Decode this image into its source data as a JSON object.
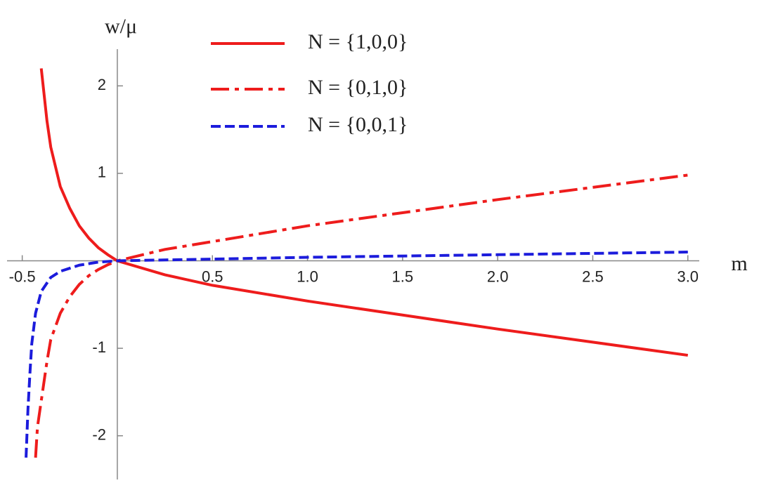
{
  "chart_data": {
    "type": "line",
    "y_label": "w/μ",
    "x_label": "m",
    "xlim": [
      -0.58,
      3.06
    ],
    "ylim": [
      -2.5,
      2.42
    ],
    "xticks": [
      -0.5,
      0.5,
      {
        "value": 1,
        "label": "1.0"
      },
      1.5,
      {
        "value": 2,
        "label": "2.0"
      },
      2.5,
      {
        "value": 3,
        "label": "3.0"
      }
    ],
    "yticks": [
      -2,
      -1,
      1,
      2
    ],
    "legend": "top",
    "series": [
      {
        "name": "N = {1,0,0}",
        "color": "#ee1c1c",
        "dash": "solid",
        "x": [
          -0.4,
          -0.37,
          -0.35,
          -0.3,
          -0.25,
          -0.2,
          -0.15,
          -0.1,
          -0.05,
          0,
          0.25,
          0.5,
          1,
          1.5,
          2,
          2.5,
          3
        ],
        "values": [
          2.2,
          1.6,
          1.3,
          0.85,
          0.6,
          0.4,
          0.26,
          0.15,
          0.07,
          0,
          -0.16,
          -0.28,
          -0.46,
          -0.62,
          -0.78,
          -0.93,
          -1.08
        ]
      },
      {
        "name": "N = {0,1,0}",
        "color": "#ee1c1c",
        "dash": "dashdot",
        "x": [
          -0.43,
          -0.42,
          -0.4,
          -0.37,
          -0.35,
          -0.3,
          -0.25,
          -0.2,
          -0.15,
          -0.1,
          -0.05,
          0,
          0.25,
          0.5,
          1,
          1.5,
          2,
          2.5,
          3
        ],
        "values": [
          -2.25,
          -1.9,
          -1.6,
          -1.15,
          -0.9,
          -0.6,
          -0.41,
          -0.27,
          -0.17,
          -0.1,
          -0.045,
          0,
          0.13,
          0.22,
          0.4,
          0.55,
          0.7,
          0.84,
          0.98
        ]
      },
      {
        "name": "N = {0,0,1}",
        "color": "#1c1cdc",
        "dash": "dash",
        "x": [
          -0.48,
          -0.47,
          -0.46,
          -0.45,
          -0.43,
          -0.4,
          -0.35,
          -0.3,
          -0.2,
          -0.1,
          0,
          1,
          2,
          3
        ],
        "values": [
          -2.25,
          -1.7,
          -1.3,
          -0.95,
          -0.6,
          -0.35,
          -0.19,
          -0.12,
          -0.05,
          -0.015,
          0,
          0.04,
          0.07,
          0.1
        ]
      }
    ]
  }
}
